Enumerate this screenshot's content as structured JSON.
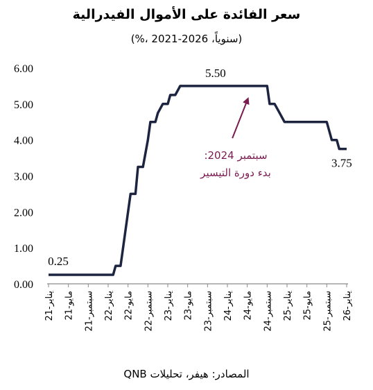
{
  "chart_data": {
    "type": "line",
    "title": "سعر الفائدة على الأموال الفيدرالية",
    "subtitle": "(%، سنوياً، 2026-2021)",
    "source": "المصادر: هيفر، تحليلات QNB",
    "ylim": [
      0,
      6
    ],
    "yticks": [
      "0.00",
      "1.00",
      "2.00",
      "3.00",
      "4.00",
      "5.00",
      "6.00"
    ],
    "xlim": [
      0,
      60
    ],
    "categories": [
      {
        "label": "يناير-21",
        "pos": 0
      },
      {
        "label": "مايو-21",
        "pos": 4
      },
      {
        "label": "سبتمبر-21",
        "pos": 8
      },
      {
        "label": "يناير-22",
        "pos": 12
      },
      {
        "label": "مايو-22",
        "pos": 16
      },
      {
        "label": "سبتمبر-22",
        "pos": 20
      },
      {
        "label": "يناير-23",
        "pos": 24
      },
      {
        "label": "مايو-23",
        "pos": 28
      },
      {
        "label": "سبتمبر-23",
        "pos": 32
      },
      {
        "label": "يناير-24",
        "pos": 36
      },
      {
        "label": "مايو-24",
        "pos": 40
      },
      {
        "label": "سبتمبر-24",
        "pos": 44
      },
      {
        "label": "يناير-25",
        "pos": 48
      },
      {
        "label": "مايو-25",
        "pos": 52
      },
      {
        "label": "سبتمبر-25",
        "pos": 56
      },
      {
        "label": "يناير-26",
        "pos": 60
      }
    ],
    "series": [
      {
        "color": "#1c2440",
        "points": [
          [
            0,
            0.25
          ],
          [
            13,
            0.25
          ],
          [
            13.5,
            0.5
          ],
          [
            14.5,
            0.5
          ],
          [
            15,
            1.0
          ],
          [
            16,
            2.0
          ],
          [
            16.5,
            2.5
          ],
          [
            17.5,
            2.5
          ],
          [
            18,
            3.25
          ],
          [
            19,
            3.25
          ],
          [
            20,
            4.0
          ],
          [
            20.5,
            4.5
          ],
          [
            21.5,
            4.5
          ],
          [
            22,
            4.75
          ],
          [
            23,
            5.0
          ],
          [
            24,
            5.0
          ],
          [
            24.5,
            5.25
          ],
          [
            25.5,
            5.25
          ],
          [
            26.5,
            5.5
          ],
          [
            44,
            5.5
          ],
          [
            44.5,
            5.0
          ],
          [
            45.5,
            5.0
          ],
          [
            46.5,
            4.75
          ],
          [
            47.5,
            4.5
          ],
          [
            56,
            4.5
          ],
          [
            56.5,
            4.25
          ],
          [
            57,
            4.0
          ],
          [
            58,
            4.0
          ],
          [
            58.5,
            3.75
          ],
          [
            60,
            3.75
          ]
        ]
      }
    ],
    "data_labels": [
      {
        "text": "0.25",
        "x": 1,
        "y": 0.25
      },
      {
        "text": "5.50",
        "x": 35,
        "y": 5.5
      },
      {
        "text": "3.75",
        "x": 59,
        "y": 3.75
      }
    ],
    "annotation": {
      "line1": "سبتمبر 2024:",
      "line2": "بدء دورة التيسير",
      "color": "#7a1a4f",
      "arrow_tip": {
        "x": 40,
        "y": 5.1
      },
      "arrow_tail": {
        "x": 37,
        "y": 4.05
      }
    }
  }
}
